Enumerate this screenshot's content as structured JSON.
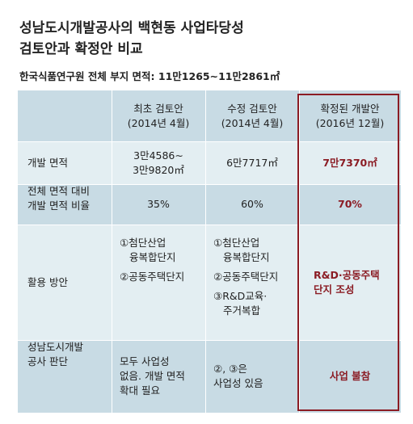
{
  "title": {
    "line1": "성남도시개발공사의 백현동 사업타당성",
    "line2": "검토안과 확정안 비교"
  },
  "subtitle": "한국식품연구원 전체 부지 면적: 11만1265∼11만2861㎡",
  "columns": {
    "initial": {
      "line1": "최초 검토안",
      "line2": "(2014년 4월)"
    },
    "revised": {
      "line1": "수정 검토안",
      "line2": "(2014년 4월)"
    },
    "final": {
      "line1": "확정된 개발안",
      "line2": "(2016년 12월)"
    }
  },
  "rows": {
    "area": {
      "label": "개발 면적",
      "initial": [
        "3만4586∼",
        "3만9820㎡"
      ],
      "revised": "6만7717㎡",
      "final": "7만7370㎡"
    },
    "ratio": {
      "label": [
        "전체 면적 대비",
        "개발 면적 비율"
      ],
      "initial": "35%",
      "revised": "60%",
      "final": "70%"
    },
    "usage": {
      "label": "활용 방안",
      "initial": [
        "①첨단산업",
        "  융복합단지",
        "②공동주택단지"
      ],
      "revised": [
        "①첨단산업",
        "  융복합단지",
        "②공동주택단지",
        "③R&D교육·",
        "  주거복합"
      ],
      "final": [
        "R&D·공동주택",
        "단지 조성"
      ]
    },
    "judgment": {
      "label": [
        "성남도시개발",
        "공사 판단"
      ],
      "initial": [
        "모두 사업성",
        "없음. 개발 면적",
        "확대 필요"
      ],
      "revised": [
        "②, ③은",
        "사업성 있음"
      ],
      "final": "사업 불참"
    }
  },
  "colors": {
    "header_bg": "#c8dbe4",
    "row_light": "#e3eef2",
    "row_dark": "#c8dbe4",
    "final_accent": "#8b1c24"
  }
}
